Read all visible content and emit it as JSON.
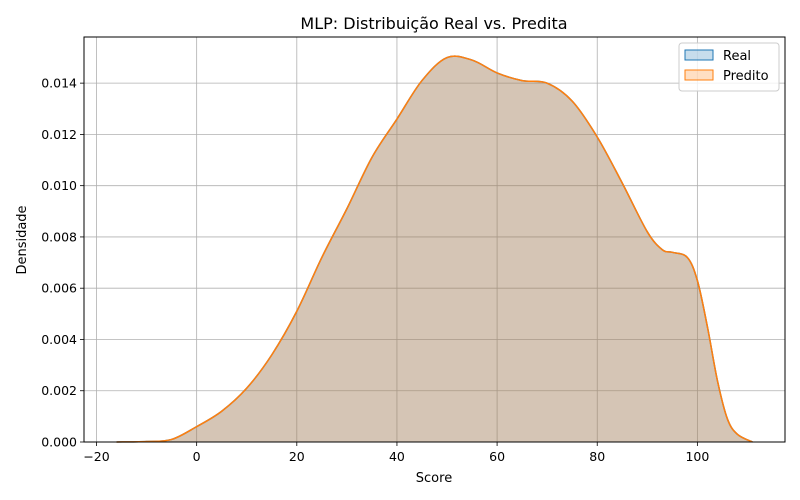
{
  "chart_data": {
    "type": "area",
    "title": "MLP: Distribuição Real vs. Predita",
    "xlabel": "Score",
    "ylabel": "Densidade",
    "xlim": [
      -22.5,
      117.5
    ],
    "ylim": [
      0,
      0.0158
    ],
    "xticks": [
      -20,
      0,
      20,
      40,
      60,
      80,
      100
    ],
    "yticks": [
      0.0,
      0.002,
      0.004,
      0.006,
      0.008,
      0.01,
      0.012,
      0.014
    ],
    "ytick_labels": [
      "0.000",
      "0.002",
      "0.004",
      "0.006",
      "0.008",
      "0.010",
      "0.012",
      "0.014"
    ],
    "grid": true,
    "legend_position": "top-right",
    "series": [
      {
        "name": "Real",
        "color": "#1f77b4",
        "x": [
          -16,
          -10,
          -5,
          0,
          5,
          10,
          15,
          20,
          25,
          30,
          35,
          40,
          45,
          50,
          55,
          60,
          65,
          70,
          75,
          80,
          85,
          90,
          93,
          95,
          98,
          100,
          102,
          104,
          106,
          108,
          111
        ],
        "y": [
          0,
          2e-05,
          0.0001,
          0.0006,
          0.0012,
          0.0021,
          0.0034,
          0.0051,
          0.0072,
          0.0091,
          0.0111,
          0.0126,
          0.0141,
          0.015,
          0.0149,
          0.0144,
          0.0141,
          0.014,
          0.0133,
          0.0119,
          0.0101,
          0.0082,
          0.0075,
          0.0074,
          0.0072,
          0.0063,
          0.0045,
          0.0024,
          0.0009,
          0.0003,
          0
        ]
      },
      {
        "name": "Predito",
        "color": "#ff7f0e",
        "x": [
          -16,
          -10,
          -5,
          0,
          5,
          10,
          15,
          20,
          25,
          30,
          35,
          40,
          45,
          50,
          55,
          60,
          65,
          70,
          75,
          80,
          85,
          90,
          93,
          95,
          98,
          100,
          102,
          104,
          106,
          108,
          111
        ],
        "y": [
          0,
          2e-05,
          0.0001,
          0.0006,
          0.0012,
          0.0021,
          0.0034,
          0.0051,
          0.0072,
          0.0091,
          0.0111,
          0.0126,
          0.0141,
          0.015,
          0.0149,
          0.0144,
          0.0141,
          0.014,
          0.0133,
          0.0119,
          0.0101,
          0.0082,
          0.0075,
          0.0074,
          0.0072,
          0.0063,
          0.0045,
          0.0024,
          0.0009,
          0.0003,
          0
        ]
      }
    ]
  }
}
